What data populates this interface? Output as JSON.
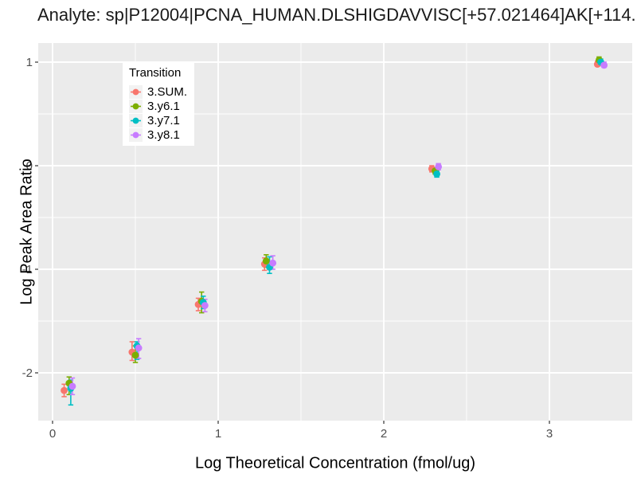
{
  "title": "Analyte: sp|P12004|PCNA_HUMAN.DLSHIGDAVVISC[+57.021464]AK[+114.",
  "axes": {
    "x_label": "Log Theoretical Concentration (fmol/ug)",
    "y_label": "Log Peak Area Ratio"
  },
  "legend": {
    "title": "Transition"
  },
  "colors": {
    "panel_bg": "#EBEBEB",
    "grid": "#FFFFFF",
    "tick_mark": "#333333",
    "tick_label": "#4D4D4D",
    "legend_key_bg": "#F2F2F2"
  },
  "chart_data": {
    "type": "scatter",
    "title": "Analyte: sp|P12004|PCNA_HUMAN.DLSHIGDAVVISC[+57.021464]AK[+114.",
    "xlabel": "Log Theoretical Concentration (fmol/ug)",
    "ylabel": "Log Peak Area Ratio",
    "xlim": [
      -0.09,
      3.49
    ],
    "ylim": [
      -2.46,
      1.18
    ],
    "x_ticks": [
      0,
      1,
      2,
      3
    ],
    "y_ticks": [
      -2,
      -1,
      0,
      1
    ],
    "x_minor": [
      0.5,
      1.5,
      2.5
    ],
    "y_minor": [
      -1.5,
      -0.5,
      0.5
    ],
    "grid": true,
    "error_bars": true,
    "legend_position": "top-left-inset",
    "legend_title": "Transition",
    "point_format": [
      "x",
      "y",
      "ymin",
      "ymax"
    ],
    "series": [
      {
        "name": "3.SUM.",
        "color": "#F8766D",
        "points": [
          [
            0.07,
            -2.17,
            -2.23,
            -2.11
          ],
          [
            0.48,
            -1.8,
            -1.88,
            -1.7
          ],
          [
            0.88,
            -1.34,
            -1.4,
            -1.28
          ],
          [
            1.28,
            -0.95,
            -1.01,
            -0.89
          ],
          [
            2.29,
            -0.03,
            -0.06,
            0.0
          ],
          [
            3.29,
            0.98,
            0.96,
            1.01
          ]
        ]
      },
      {
        "name": "3.y6.1",
        "color": "#7CAE00",
        "points": [
          [
            0.1,
            -2.1,
            -2.21,
            -2.04
          ],
          [
            0.5,
            -1.83,
            -1.9,
            -1.74
          ],
          [
            0.9,
            -1.31,
            -1.42,
            -1.22
          ],
          [
            1.29,
            -0.92,
            -0.98,
            -0.86
          ],
          [
            2.31,
            -0.05,
            -0.08,
            -0.02
          ],
          [
            3.3,
            1.02,
            1.0,
            1.05
          ]
        ]
      },
      {
        "name": "3.y7.1",
        "color": "#00BFC4",
        "points": [
          [
            0.11,
            -2.15,
            -2.31,
            -2.07
          ],
          [
            0.51,
            -1.74,
            -1.87,
            -1.7
          ],
          [
            0.91,
            -1.32,
            -1.38,
            -1.26
          ],
          [
            1.31,
            -0.98,
            -1.04,
            -0.88
          ],
          [
            2.32,
            -0.08,
            -0.11,
            -0.05
          ],
          [
            3.31,
            1.0,
            0.98,
            1.03
          ]
        ]
      },
      {
        "name": "3.y8.1",
        "color": "#C77CFF",
        "points": [
          [
            0.12,
            -2.13,
            -2.21,
            -2.05
          ],
          [
            0.52,
            -1.76,
            -1.86,
            -1.67
          ],
          [
            0.92,
            -1.35,
            -1.41,
            -1.29
          ],
          [
            1.33,
            -0.94,
            -1.0,
            -0.87
          ],
          [
            2.33,
            -0.01,
            -0.04,
            0.02
          ],
          [
            3.33,
            0.97,
            0.95,
            1.0
          ]
        ]
      }
    ]
  }
}
